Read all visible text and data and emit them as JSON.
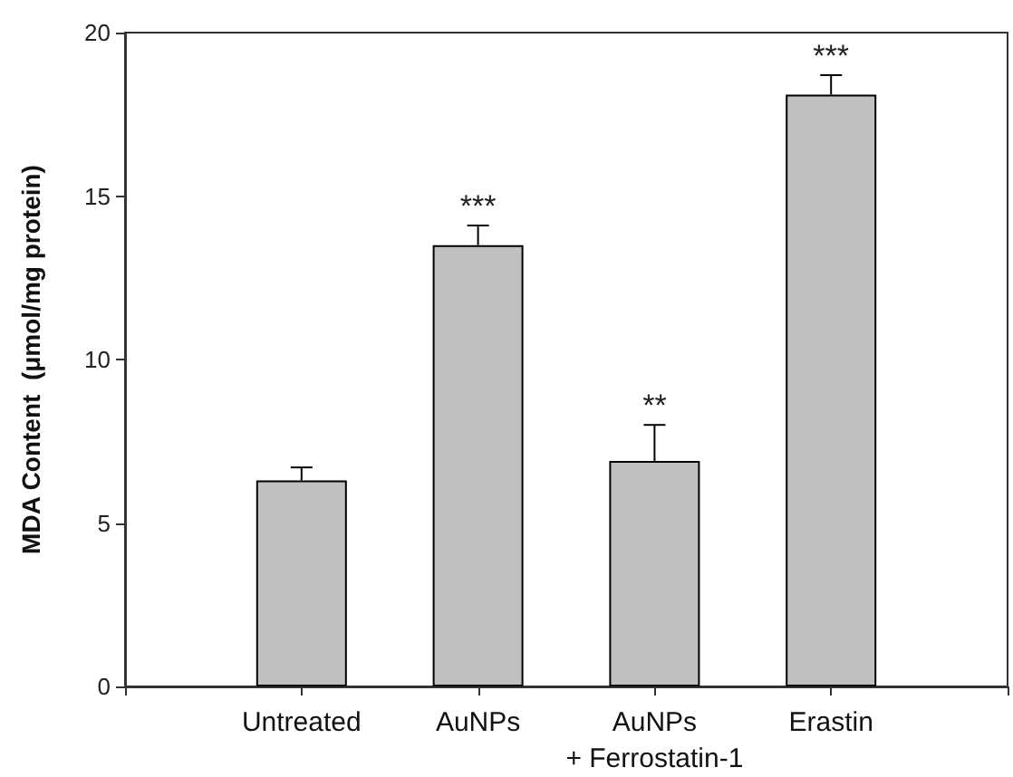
{
  "chart_data": {
    "type": "bar",
    "ylabel": "MDA Content  (μmol/mg protein)",
    "categories": [
      "Untreated",
      "AuNPs",
      "AuNPs\n+ Ferrostatin-1",
      "Erastin"
    ],
    "values": [
      6.3,
      13.5,
      6.9,
      18.1
    ],
    "color": "#c0c0c0",
    "errors": [
      [
        6.3,
        6.7
      ],
      [
        13.5,
        14.1
      ],
      [
        6.9,
        8.0
      ],
      [
        18.1,
        18.7
      ]
    ],
    "ylim": [
      0,
      20
    ],
    "yticks": [
      0,
      5,
      10,
      15,
      20
    ],
    "grid": false,
    "annotations": [
      {
        "text": "***",
        "x": "AuNPs",
        "y": 14.1
      },
      {
        "text": "**",
        "x": "AuNPs\n+ Ferrostatin-1",
        "y": 8.0
      },
      {
        "text": "***",
        "x": "Erastin",
        "y": 18.7
      }
    ]
  }
}
